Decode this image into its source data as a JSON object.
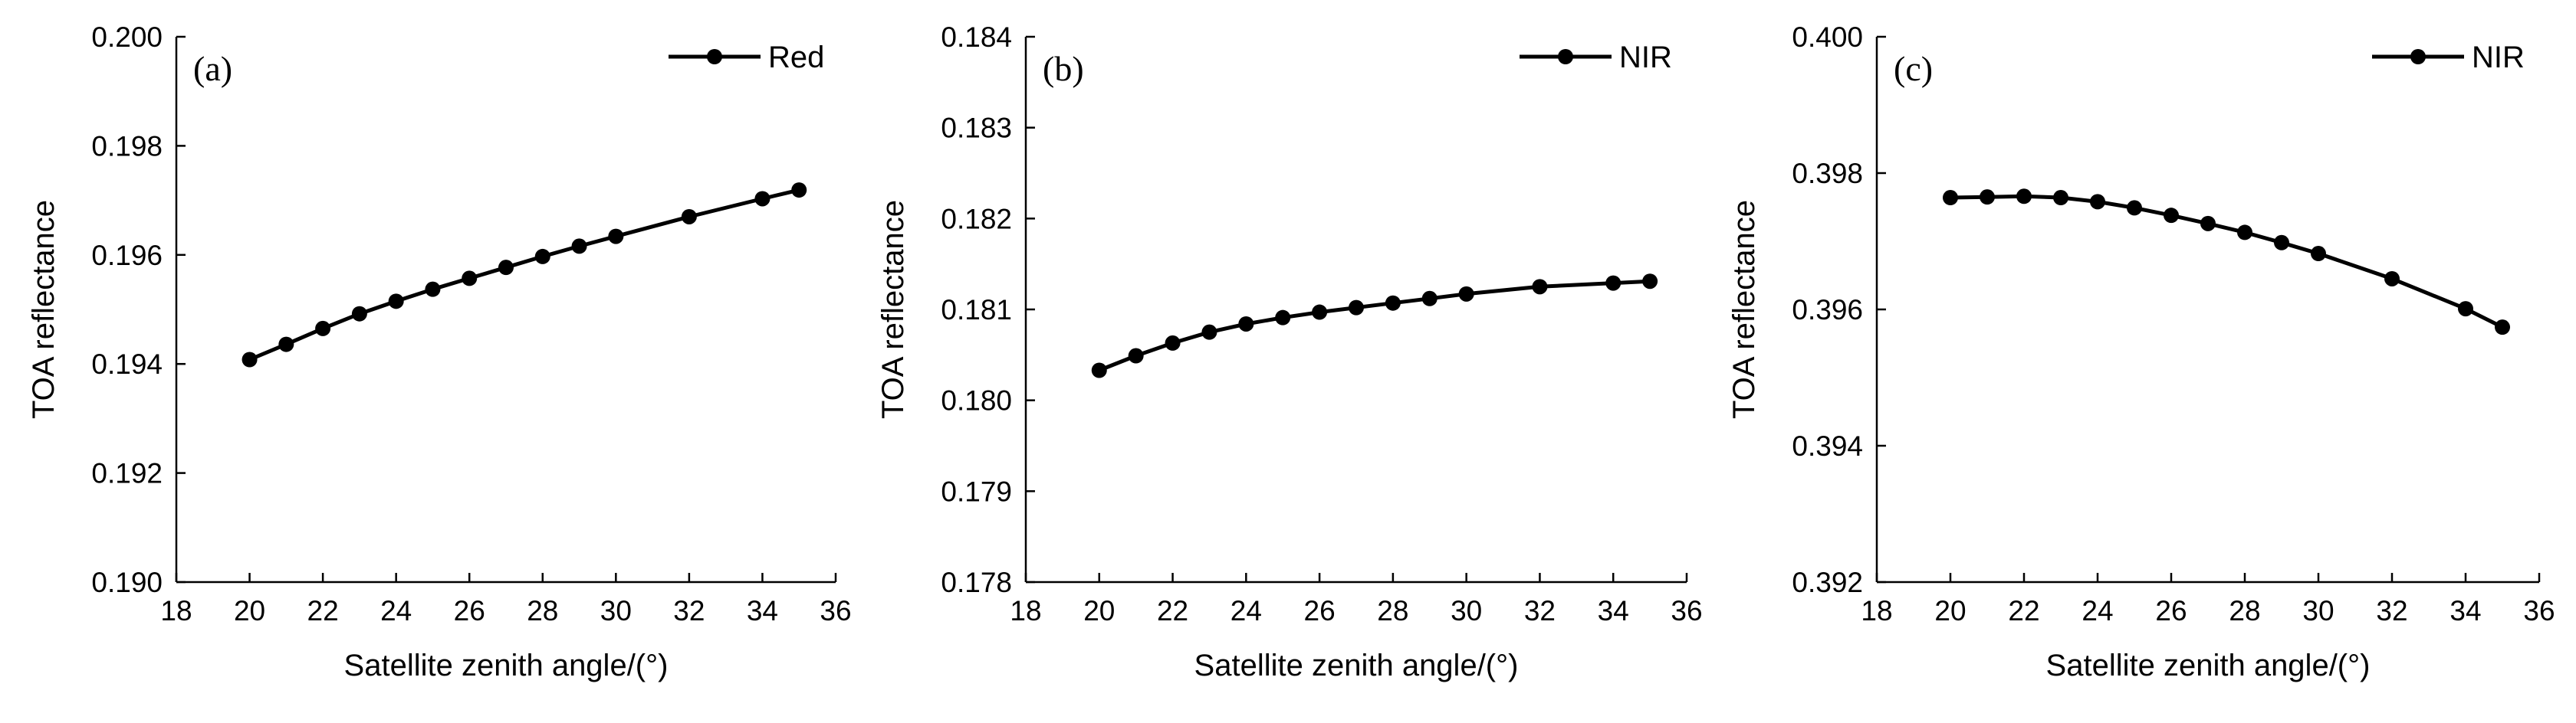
{
  "chart_data": [
    {
      "type": "line",
      "panel_label": "(a)",
      "title": "",
      "xlabel": "Satellite zenith angle/(°)",
      "ylabel": "TOA reflectance",
      "xlim": [
        18,
        36
      ],
      "ylim": [
        0.19,
        0.2
      ],
      "xticks": [
        18,
        20,
        22,
        24,
        26,
        28,
        30,
        32,
        34,
        36
      ],
      "xtick_labels": [
        "18",
        "20",
        "22",
        "24",
        "26",
        "28",
        "30",
        "32",
        "34",
        "36"
      ],
      "yticks": [
        0.19,
        0.192,
        0.194,
        0.196,
        0.198,
        0.2
      ],
      "ytick_labels": [
        "0.190",
        "0.192",
        "0.194",
        "0.196",
        "0.198",
        "0.200"
      ],
      "grid": false,
      "legend_position": "top-right",
      "series": [
        {
          "name": "Red",
          "x": [
            20,
            21,
            22,
            23,
            24,
            25,
            26,
            27,
            28,
            29,
            30,
            32,
            34,
            35
          ],
          "y": [
            0.19408,
            0.19436,
            0.19465,
            0.19492,
            0.19515,
            0.19537,
            0.19557,
            0.19577,
            0.19597,
            0.19616,
            0.19634,
            0.1967,
            0.19703,
            0.19719
          ]
        }
      ]
    },
    {
      "type": "line",
      "panel_label": "(b)",
      "title": "",
      "xlabel": "Satellite zenith angle/(°)",
      "ylabel": "TOA reflectance",
      "xlim": [
        18,
        36
      ],
      "ylim": [
        0.178,
        0.184
      ],
      "xticks": [
        18,
        20,
        22,
        24,
        26,
        28,
        30,
        32,
        34,
        36
      ],
      "xtick_labels": [
        "18",
        "20",
        "22",
        "24",
        "26",
        "28",
        "30",
        "32",
        "34",
        "36"
      ],
      "yticks": [
        0.178,
        0.179,
        0.18,
        0.181,
        0.182,
        0.183,
        0.184
      ],
      "ytick_labels": [
        "0.178",
        "0.179",
        "0.180",
        "0.181",
        "0.182",
        "0.183",
        "0.184"
      ],
      "grid": false,
      "legend_position": "top-right",
      "series": [
        {
          "name": "NIR",
          "x": [
            20,
            21,
            22,
            23,
            24,
            25,
            26,
            27,
            28,
            29,
            30,
            32,
            34,
            35
          ],
          "y": [
            0.18033,
            0.18049,
            0.18063,
            0.18075,
            0.18084,
            0.18091,
            0.18097,
            0.18102,
            0.18107,
            0.18112,
            0.18117,
            0.18125,
            0.18129,
            0.18131
          ]
        }
      ]
    },
    {
      "type": "line",
      "panel_label": "(c)",
      "title": "",
      "xlabel": "Satellite zenith angle/(°)",
      "ylabel": "TOA reflectance",
      "xlim": [
        18,
        36
      ],
      "ylim": [
        0.392,
        0.4
      ],
      "xticks": [
        18,
        20,
        22,
        24,
        26,
        28,
        30,
        32,
        34,
        36
      ],
      "xtick_labels": [
        "18",
        "20",
        "22",
        "24",
        "26",
        "28",
        "30",
        "32",
        "34",
        "36"
      ],
      "yticks": [
        0.392,
        0.394,
        0.396,
        0.398,
        0.4
      ],
      "ytick_labels": [
        "0.392",
        "0.394",
        "0.396",
        "0.398",
        "0.400"
      ],
      "grid": false,
      "legend_position": "top-right",
      "series": [
        {
          "name": "NIR",
          "x": [
            20,
            21,
            22,
            23,
            24,
            25,
            26,
            27,
            28,
            29,
            30,
            32,
            34,
            35
          ],
          "y": [
            0.39764,
            0.39765,
            0.39766,
            0.39764,
            0.39758,
            0.39749,
            0.39738,
            0.39726,
            0.39713,
            0.39698,
            0.39682,
            0.39645,
            0.39601,
            0.39574
          ]
        }
      ]
    }
  ]
}
